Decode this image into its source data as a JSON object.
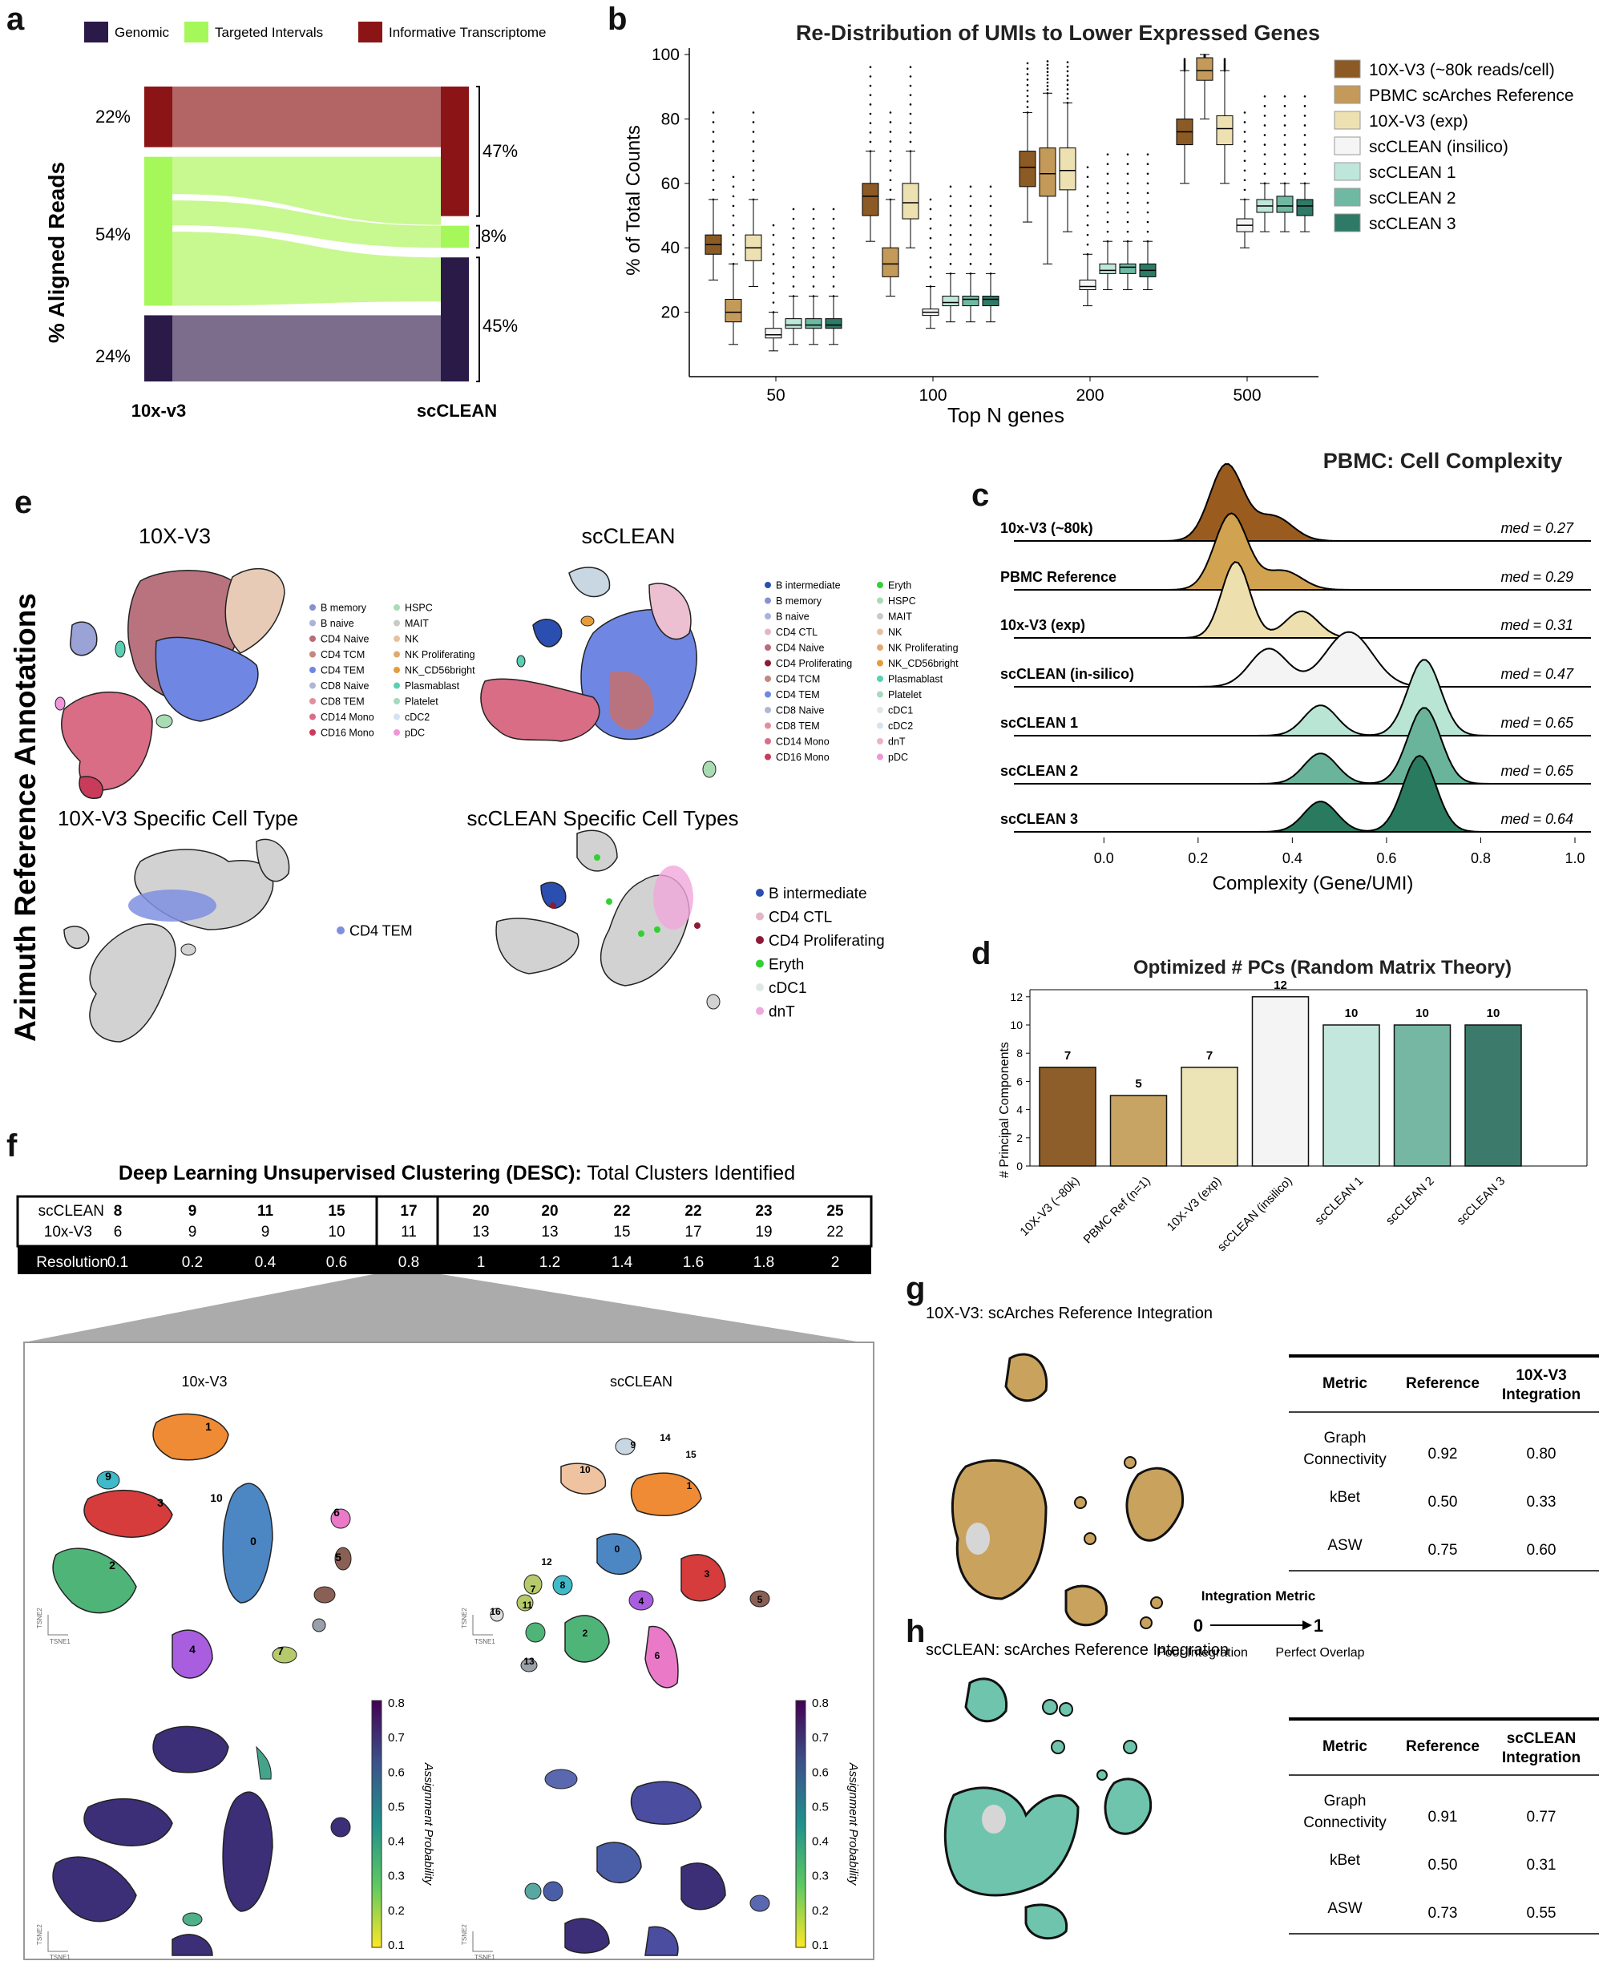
{
  "panels": {
    "a": "a",
    "b": "b",
    "c": "c",
    "d": "d",
    "e": "e",
    "f": "f",
    "g": "g",
    "h": "h"
  },
  "panel_a": {
    "legend": [
      {
        "label": "Genomic",
        "color": "#2a1a48"
      },
      {
        "label": "Targeted Intervals",
        "color": "#a6f75a"
      },
      {
        "label": "Informative Transcriptome",
        "color": "#8b1516"
      }
    ],
    "ylabel": "% Aligned Reads",
    "left_label": "10x-v3",
    "right_label": "scCLEAN",
    "left_pcts": [
      "22%",
      "54%",
      "24%"
    ],
    "right_pcts": [
      "47%",
      "8%",
      "45%"
    ]
  },
  "chart_data": [
    {
      "type": "bar",
      "id": "panel_a",
      "categories": [
        "10x-v3",
        "scCLEAN"
      ],
      "series": [
        {
          "name": "Informative Transcriptome",
          "values": [
            22,
            47
          ],
          "color": "#8b1516"
        },
        {
          "name": "Targeted Intervals",
          "values": [
            54,
            8
          ],
          "color": "#a6f75a"
        },
        {
          "name": "Genomic",
          "values": [
            24,
            45
          ],
          "color": "#2a1a48"
        }
      ],
      "ylabel": "% Aligned Reads"
    },
    {
      "type": "box",
      "id": "panel_b",
      "title": "Re-Distribution of UMIs to Lower Expressed Genes",
      "xlabel": "Top N genes",
      "ylabel": "% of Total Counts",
      "categories": [
        "50",
        "100",
        "200",
        "500"
      ],
      "yticks": [
        20,
        40,
        60,
        80,
        100
      ],
      "ylim": [
        0,
        102
      ],
      "series": [
        {
          "name": "10X-V3 (~80k reads/cell)",
          "color": "#8c5a24",
          "medians": [
            41,
            56,
            65,
            76
          ],
          "q1": [
            38,
            50,
            59,
            72
          ],
          "q3": [
            44,
            60,
            70,
            80
          ],
          "wlo": [
            30,
            42,
            48,
            60
          ],
          "whi": [
            55,
            70,
            82,
            95
          ]
        },
        {
          "name": "PBMC scArches Reference",
          "color": "#c49a5a",
          "medians": [
            20,
            35,
            63,
            95
          ],
          "q1": [
            17,
            31,
            56,
            92
          ],
          "q3": [
            24,
            40,
            71,
            99
          ],
          "wlo": [
            10,
            25,
            35,
            80
          ],
          "whi": [
            35,
            55,
            88,
            100
          ]
        },
        {
          "name": "10X-V3 (exp)",
          "color": "#ede1b2",
          "medians": [
            40,
            54,
            64,
            77
          ],
          "q1": [
            36,
            49,
            58,
            72
          ],
          "q3": [
            44,
            60,
            71,
            81
          ],
          "wlo": [
            28,
            40,
            45,
            60
          ],
          "whi": [
            55,
            70,
            85,
            95
          ]
        },
        {
          "name": "scCLEAN (insilico)",
          "color": "#f5f5f5",
          "medians": [
            13,
            20,
            28,
            47
          ],
          "q1": [
            12,
            19,
            27,
            45
          ],
          "q3": [
            15,
            21,
            30,
            49
          ],
          "wlo": [
            8,
            15,
            22,
            40
          ],
          "whi": [
            20,
            28,
            38,
            55
          ]
        },
        {
          "name": "scCLEAN 1",
          "color": "#bfe6da",
          "medians": [
            16,
            23,
            33,
            53
          ],
          "q1": [
            15,
            22,
            32,
            51
          ],
          "q3": [
            18,
            25,
            35,
            55
          ],
          "wlo": [
            10,
            17,
            27,
            45
          ],
          "whi": [
            25,
            32,
            42,
            60
          ]
        },
        {
          "name": "scCLEAN 2",
          "color": "#6fb9a3",
          "medians": [
            16,
            24,
            34,
            53
          ],
          "q1": [
            15,
            22,
            32,
            51
          ],
          "q3": [
            18,
            25,
            35,
            56
          ],
          "wlo": [
            10,
            17,
            27,
            45
          ],
          "whi": [
            25,
            32,
            42,
            60
          ]
        },
        {
          "name": "scCLEAN 3",
          "color": "#2e7a67",
          "medians": [
            16,
            24,
            33,
            53
          ],
          "q1": [
            15,
            22,
            31,
            50
          ],
          "q3": [
            18,
            25,
            35,
            55
          ],
          "wlo": [
            10,
            17,
            27,
            45
          ],
          "whi": [
            25,
            32,
            42,
            60
          ]
        }
      ]
    },
    {
      "type": "ridgeline",
      "id": "panel_c",
      "title": "PBMC: Cell Complexity",
      "xlabel": "Complexity (Gene/UMI)",
      "xticks": [
        0.0,
        0.2,
        0.4,
        0.6,
        0.8,
        1.0
      ],
      "xtick_labels": [
        "0.0",
        "0.2",
        "0.4",
        "0.6",
        "0.8",
        "1.0"
      ],
      "series": [
        {
          "name": "10x-V3 (~80k)",
          "median_label": "med = 0.27",
          "color": "#9a5b1f",
          "peaks": [
            [
              0.26,
              1.0,
              0.035
            ],
            [
              0.36,
              0.32,
              0.04
            ]
          ]
        },
        {
          "name": "PBMC Reference",
          "median_label": "med = 0.29",
          "color": "#d1a250",
          "peaks": [
            [
              0.27,
              1.0,
              0.035
            ],
            [
              0.38,
              0.25,
              0.04
            ]
          ]
        },
        {
          "name": "10x-V3 (exp)",
          "median_label": "med = 0.31",
          "color": "#eedfae",
          "peaks": [
            [
              0.28,
              1.0,
              0.03
            ],
            [
              0.42,
              0.35,
              0.035
            ]
          ]
        },
        {
          "name": "scCLEAN (in-silico)",
          "median_label": "med = 0.47",
          "color": "#f4f4f4",
          "peaks": [
            [
              0.35,
              0.5,
              0.04
            ],
            [
              0.52,
              0.72,
              0.05
            ]
          ]
        },
        {
          "name": "scCLEAN 1",
          "median_label": "med = 0.65",
          "color": "#b9e5d4",
          "peaks": [
            [
              0.46,
              0.4,
              0.035
            ],
            [
              0.68,
              1.0,
              0.035
            ]
          ]
        },
        {
          "name": "scCLEAN 2",
          "median_label": "med = 0.65",
          "color": "#69b49b",
          "peaks": [
            [
              0.46,
              0.4,
              0.035
            ],
            [
              0.68,
              1.0,
              0.035
            ]
          ]
        },
        {
          "name": "scCLEAN 3",
          "median_label": "med = 0.64",
          "color": "#2a7a60",
          "peaks": [
            [
              0.46,
              0.4,
              0.035
            ],
            [
              0.67,
              1.0,
              0.035
            ]
          ]
        }
      ]
    },
    {
      "type": "bar",
      "id": "panel_d",
      "title": "Optimized # PCs (Random Matrix Theory)",
      "ylabel": "# Principal Components",
      "categories": [
        "10X-V3 (~80k)",
        "PBMC Ref (n=1)",
        "10X-V3 (exp)",
        "scCLEAN (insilico)",
        "scCLEAN 1",
        "scCLEAN 2",
        "scCLEAN 3"
      ],
      "values": [
        7,
        5,
        7,
        12,
        10,
        10,
        10
      ],
      "colors": [
        "#8e5e2a",
        "#c7a463",
        "#ece3b7",
        "#f4f4f4",
        "#c3e7dc",
        "#76b7a3",
        "#3c7b6b"
      ],
      "ylim": [
        0,
        12.5
      ],
      "yticks": [
        0,
        2,
        4,
        6,
        8,
        10,
        12
      ]
    }
  ],
  "panel_e": {
    "ylabel": "Azimuth Reference Annotations",
    "titles": {
      "v3": "10X-V3",
      "clean": "scCLEAN",
      "v3_specific": "10X-V3 Specific Cell Type",
      "clean_specific": "scCLEAN Specific Cell Types"
    },
    "legend_v3": [
      {
        "label": "B memory",
        "color": "#8a8fd3"
      },
      {
        "label": "B naive",
        "color": "#a8b2dd"
      },
      {
        "label": "CD4 Naive",
        "color": "#b96c7c"
      },
      {
        "label": "CD4 TCM",
        "color": "#c4887d"
      },
      {
        "label": "CD4 TEM",
        "color": "#6f87e3"
      },
      {
        "label": "CD8 Naive",
        "color": "#b0b6d6"
      },
      {
        "label": "CD8 TEM",
        "color": "#e28f9b"
      },
      {
        "label": "CD14 Mono",
        "color": "#d86f86"
      },
      {
        "label": "CD16 Mono",
        "color": "#c93b5b"
      },
      {
        "label": "HSPC",
        "color": "#a8dcb3"
      },
      {
        "label": "MAIT",
        "color": "#c9c9c9"
      },
      {
        "label": "NK",
        "color": "#e3c39f"
      },
      {
        "label": "NK Proliferating",
        "color": "#e0a96e"
      },
      {
        "label": "NK_CD56bright",
        "color": "#e59c3a"
      },
      {
        "label": "Plasmablast",
        "color": "#5ad0b3"
      },
      {
        "label": "Platelet",
        "color": "#a6d9bd"
      },
      {
        "label": "cDC2",
        "color": "#d4e3ef"
      },
      {
        "label": "pDC",
        "color": "#f095d8"
      }
    ],
    "legend_clean": [
      {
        "label": "B intermediate",
        "color": "#2a4fb0"
      },
      {
        "label": "B memory",
        "color": "#8a8fd3"
      },
      {
        "label": "B naive",
        "color": "#a8b2dd"
      },
      {
        "label": "CD4 CTL",
        "color": "#e1b7c7"
      },
      {
        "label": "CD4 Naive",
        "color": "#b96c7c"
      },
      {
        "label": "CD4 Proliferating",
        "color": "#8b1b35"
      },
      {
        "label": "CD4 TCM",
        "color": "#c4887d"
      },
      {
        "label": "CD4 TEM",
        "color": "#6f87e3"
      },
      {
        "label": "CD8 Naive",
        "color": "#b0b6d6"
      },
      {
        "label": "CD8 TEM",
        "color": "#e28f9b"
      },
      {
        "label": "CD14 Mono",
        "color": "#d86f86"
      },
      {
        "label": "CD16 Mono",
        "color": "#c93b5b"
      },
      {
        "label": "Eryth",
        "color": "#33d033"
      },
      {
        "label": "HSPC",
        "color": "#a8dcb3"
      },
      {
        "label": "MAIT",
        "color": "#c9c9c9"
      },
      {
        "label": "NK",
        "color": "#e3c39f"
      },
      {
        "label": "NK Proliferating",
        "color": "#e0a96e"
      },
      {
        "label": "NK_CD56bright",
        "color": "#e59c3a"
      },
      {
        "label": "Plasmablast",
        "color": "#5ad0b3"
      },
      {
        "label": "Platelet",
        "color": "#a6d9bd"
      },
      {
        "label": "cDC1",
        "color": "#dfe9e3"
      },
      {
        "label": "cDC2",
        "color": "#d4e3ef"
      },
      {
        "label": "dnT",
        "color": "#e9b4c6"
      },
      {
        "label": "pDC",
        "color": "#f095d8"
      }
    ],
    "legend_v3_specific": [
      {
        "label": "CD4 TEM",
        "color": "#7f8fe0"
      }
    ],
    "legend_clean_specific": [
      {
        "label": "B intermediate",
        "color": "#2a4fb0"
      },
      {
        "label": "CD4 CTL",
        "color": "#e1b7c7"
      },
      {
        "label": "CD4 Proliferating",
        "color": "#8b1b35"
      },
      {
        "label": "Eryth",
        "color": "#33d033"
      },
      {
        "label": "cDC1",
        "color": "#dfe9e3"
      },
      {
        "label": "dnT",
        "color": "#f0a8dc"
      }
    ]
  },
  "panel_f": {
    "title_bold": "Deep Learning Unsupervised Clustering (DESC):",
    "title_rest": " Total Clusters Identified",
    "row_labels": [
      "scCLEAN",
      "10x-V3",
      "Resolution"
    ],
    "sccleans": [
      "8",
      "9",
      "11",
      "15",
      "17",
      "20",
      "20",
      "22",
      "22",
      "23",
      "25"
    ],
    "v3": [
      "6",
      "9",
      "9",
      "10",
      "11",
      "13",
      "13",
      "15",
      "17",
      "19",
      "22"
    ],
    "resolutions": [
      "0.1",
      "0.2",
      "0.4",
      "0.6",
      "0.8",
      "1",
      "1.2",
      "1.4",
      "1.6",
      "1.8",
      "2"
    ],
    "umap_titles": [
      "10x-V3",
      "scCLEAN"
    ],
    "v3_clusters": [
      "0",
      "1",
      "2",
      "3",
      "4",
      "5",
      "6",
      "7",
      "8",
      "9",
      "10"
    ],
    "clean_clusters": [
      "0",
      "1",
      "2",
      "3",
      "4",
      "5",
      "6",
      "7",
      "8",
      "9",
      "10",
      "11",
      "12",
      "13",
      "14",
      "15",
      "16"
    ],
    "colorbar_label": "Assignment Probability",
    "colorbar_ticks": [
      "0.8",
      "0.7",
      "0.6",
      "0.5",
      "0.4",
      "0.3",
      "0.2",
      "0.1"
    ],
    "axis_x": "TSNE1",
    "axis_y": "TSNE2"
  },
  "panel_g": {
    "title": "10X-V3: scArches Reference Integration",
    "headers": [
      "Metric",
      "Reference",
      "10X-V3 Integration"
    ],
    "rows": [
      [
        "Graph Connectivity",
        "0.92",
        "0.80"
      ],
      [
        "kBet",
        "0.50",
        "0.33"
      ],
      [
        "ASW",
        "0.75",
        "0.60"
      ]
    ]
  },
  "panel_h": {
    "title": "scCLEAN: scArches Reference Integration",
    "headers": [
      "Metric",
      "Reference",
      "scCLEAN Integration"
    ],
    "rows": [
      [
        "Graph Connectivity",
        "0.91",
        "0.77"
      ],
      [
        "kBet",
        "0.50",
        "0.31"
      ],
      [
        "ASW",
        "0.73",
        "0.55"
      ]
    ],
    "scale": {
      "title": "Integration Metric",
      "left_value": "0",
      "right_value": "1",
      "left_text": "Poor Integration",
      "right_text": "Perfect Overlap"
    }
  }
}
